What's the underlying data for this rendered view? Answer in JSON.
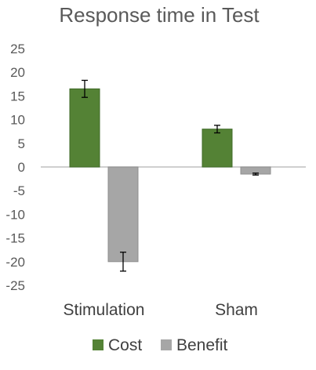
{
  "chart_data": {
    "type": "bar",
    "title": "Response time in Test",
    "xlabel": "",
    "ylabel": "",
    "categories": [
      "Stimulation",
      "Sham"
    ],
    "series": [
      {
        "name": "Cost",
        "values": [
          16.5,
          8.0
        ],
        "errors": [
          1.8,
          0.8
        ],
        "color": "#548235"
      },
      {
        "name": "Benefit",
        "values": [
          -20.0,
          -1.5
        ],
        "errors": [
          2.0,
          0.2
        ],
        "color": "#a6a6a6"
      }
    ],
    "ylim": [
      -25,
      25
    ],
    "yticks": [
      25,
      20,
      15,
      10,
      5,
      0,
      -5,
      -10,
      -15,
      -20,
      -25
    ],
    "grid": false,
    "legend_position": "bottom"
  }
}
